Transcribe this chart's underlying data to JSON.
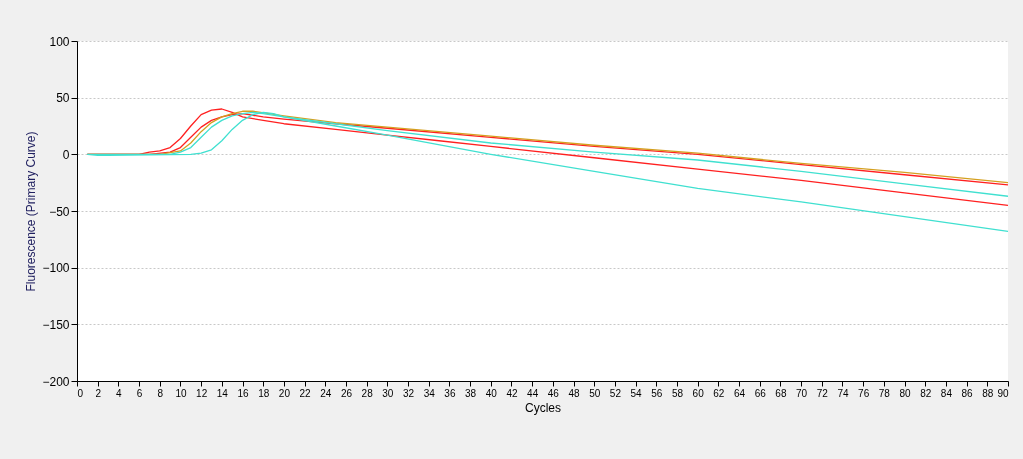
{
  "chart_data": {
    "type": "line",
    "xlabel": "Cycles",
    "ylabel": "Fluorescence (Primary Curve)",
    "xlim": [
      0,
      90
    ],
    "ylim": [
      -200,
      100
    ],
    "xticks": [
      0,
      2,
      4,
      6,
      8,
      10,
      12,
      14,
      16,
      18,
      20,
      22,
      24,
      26,
      28,
      30,
      32,
      34,
      36,
      38,
      40,
      42,
      44,
      46,
      48,
      50,
      52,
      54,
      56,
      58,
      60,
      62,
      64,
      66,
      68,
      70,
      72,
      74,
      76,
      78,
      80,
      82,
      84,
      86,
      88,
      90
    ],
    "yticks": [
      -200,
      -150,
      -100,
      -50,
      0,
      50,
      100
    ],
    "grid": "y",
    "legend": false,
    "marker": "none",
    "line_style": "solid",
    "series": [
      {
        "color": "#ff2020",
        "x": [
          1,
          6,
          7,
          8,
          9,
          10,
          11,
          12,
          13,
          14,
          15,
          16,
          18,
          20,
          25,
          30,
          35,
          40,
          50,
          60,
          70,
          80,
          90
        ],
        "values": [
          0,
          0,
          2,
          3,
          6,
          14,
          25,
          35,
          39,
          40,
          37,
          33,
          30,
          27,
          22,
          17,
          12,
          7,
          -3,
          -13,
          -23,
          -34,
          -45
        ]
      },
      {
        "color": "#ff2020",
        "x": [
          1,
          7,
          9,
          10,
          11,
          12,
          13,
          14,
          15,
          16,
          18,
          20,
          25,
          30,
          40,
          50,
          60,
          70,
          80,
          90
        ],
        "values": [
          0,
          0,
          2,
          6,
          15,
          24,
          30,
          33,
          35,
          36,
          33,
          31,
          27,
          23,
          15,
          7,
          0,
          -9,
          -18,
          -27
        ]
      },
      {
        "color": "#d4a020",
        "x": [
          1,
          8,
          10,
          11,
          12,
          13,
          14,
          15,
          16,
          17,
          20,
          25,
          30,
          40,
          50,
          60,
          70,
          80,
          90
        ],
        "values": [
          0,
          0,
          3,
          10,
          20,
          28,
          33,
          36,
          38,
          38,
          34,
          28,
          24,
          16,
          8,
          1,
          -8,
          -16,
          -25
        ]
      },
      {
        "color": "#40e0d0",
        "x": [
          1,
          9,
          10,
          11,
          12,
          13,
          14,
          15,
          16,
          17,
          18,
          20,
          25,
          30,
          40,
          50,
          60,
          70,
          80,
          90
        ],
        "values": [
          0,
          0,
          2,
          6,
          15,
          24,
          30,
          34,
          36,
          37,
          36,
          33,
          27,
          21,
          10,
          2,
          -5,
          -15,
          -26,
          -37
        ]
      },
      {
        "color": "#40e0d0",
        "x": [
          1,
          2,
          3,
          11,
          12,
          13,
          14,
          15,
          16,
          17,
          18,
          19,
          20,
          25,
          30,
          40,
          50,
          60,
          70,
          80,
          90
        ],
        "values": [
          0,
          -1,
          -1,
          0,
          1,
          4,
          12,
          22,
          30,
          35,
          37,
          36,
          33,
          25,
          17,
          0,
          -15,
          -30,
          -42,
          -55,
          -68
        ]
      }
    ]
  }
}
